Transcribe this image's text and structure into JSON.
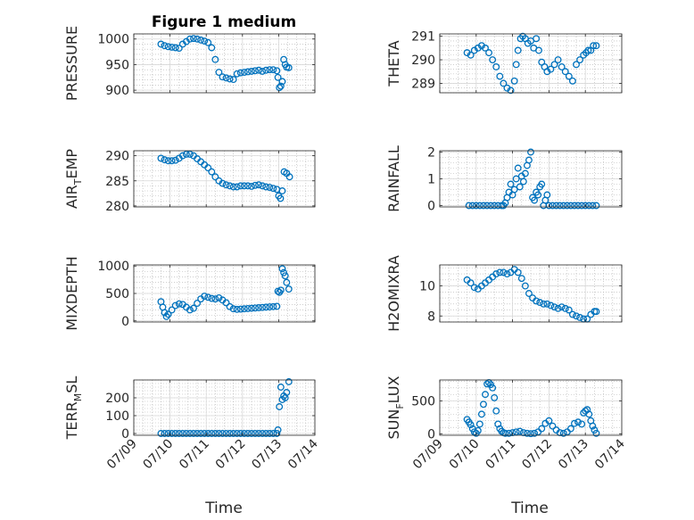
{
  "figure": {
    "title": "Figure 1 medium",
    "xlabel": "Time",
    "x_ticks": [
      "07/09",
      "07/10",
      "07/11",
      "07/12",
      "07/13",
      "07/14"
    ],
    "marker_color": "#0072BD",
    "grid_color": "#b0b0b0"
  },
  "chart_data": [
    {
      "type": "scatter",
      "ylabel_main": "PRESSURE",
      "ylabel_sub": "",
      "ylabel_tail": "",
      "ylim": [
        895,
        1010
      ],
      "yticks": [
        900,
        950,
        1000
      ],
      "xlim": [
        0,
        5
      ],
      "grid": true,
      "x": [
        0.75,
        0.85,
        0.95,
        1.05,
        1.15,
        1.25,
        1.35,
        1.45,
        1.55,
        1.65,
        1.75,
        1.85,
        1.95,
        2.05,
        2.15,
        2.25,
        2.35,
        2.45,
        2.55,
        2.65,
        2.75,
        2.85,
        2.95,
        3.05,
        3.15,
        3.25,
        3.35,
        3.45,
        3.55,
        3.65,
        3.75,
        3.85,
        3.95,
        3.98,
        4.02,
        4.06,
        4.1,
        4.14,
        4.18,
        4.22,
        4.28
      ],
      "y": [
        990,
        987,
        985,
        984,
        983,
        982,
        990,
        995,
        1000,
        1001,
        1000,
        998,
        996,
        993,
        983,
        960,
        935,
        926,
        924,
        922,
        921,
        932,
        934,
        935,
        936,
        937,
        938,
        939,
        937,
        939,
        940,
        940,
        938,
        925,
        905,
        908,
        917,
        960,
        950,
        945,
        944
      ]
    },
    {
      "type": "scatter",
      "ylabel_main": "THETA",
      "ylabel_sub": "",
      "ylabel_tail": "",
      "ylim": [
        288.6,
        291.1
      ],
      "yticks": [
        289,
        290,
        291
      ],
      "xlim": [
        0,
        5
      ],
      "grid": true,
      "x": [
        0.75,
        0.85,
        0.95,
        1.05,
        1.15,
        1.25,
        1.35,
        1.45,
        1.55,
        1.65,
        1.75,
        1.85,
        1.95,
        2.05,
        2.1,
        2.15,
        2.22,
        2.28,
        2.35,
        2.42,
        2.5,
        2.58,
        2.65,
        2.72,
        2.8,
        2.88,
        2.95,
        3.05,
        3.15,
        3.25,
        3.35,
        3.45,
        3.55,
        3.65,
        3.75,
        3.85,
        3.95,
        4.02,
        4.08,
        4.15,
        4.22,
        4.3
      ],
      "y": [
        290.3,
        290.2,
        290.4,
        290.5,
        290.6,
        290.5,
        290.3,
        290.0,
        289.7,
        289.3,
        289.0,
        288.8,
        288.7,
        289.1,
        289.8,
        290.4,
        290.9,
        291.0,
        290.9,
        290.7,
        290.8,
        290.5,
        290.9,
        290.4,
        289.9,
        289.7,
        289.5,
        289.6,
        289.8,
        290.0,
        289.7,
        289.5,
        289.3,
        289.1,
        289.8,
        290.0,
        290.2,
        290.3,
        290.4,
        290.4,
        290.6,
        290.6
      ]
    },
    {
      "type": "scatter",
      "ylabel_main": "AIR",
      "ylabel_sub": "T",
      "ylabel_tail": "EMP",
      "ylim": [
        279.8,
        291
      ],
      "yticks": [
        280,
        285,
        290
      ],
      "xlim": [
        0,
        5
      ],
      "grid": true,
      "x": [
        0.75,
        0.85,
        0.95,
        1.05,
        1.15,
        1.25,
        1.35,
        1.45,
        1.55,
        1.65,
        1.75,
        1.85,
        1.95,
        2.05,
        2.15,
        2.25,
        2.35,
        2.45,
        2.55,
        2.65,
        2.75,
        2.85,
        2.95,
        3.05,
        3.15,
        3.25,
        3.35,
        3.45,
        3.55,
        3.65,
        3.75,
        3.85,
        3.95,
        4.0,
        4.05,
        4.1,
        4.15,
        4.22,
        4.3
      ],
      "y": [
        289.5,
        289.2,
        289.0,
        289.0,
        289.1,
        289.5,
        290.0,
        290.3,
        290.3,
        290.0,
        289.4,
        288.8,
        288.2,
        287.6,
        286.8,
        285.8,
        285.0,
        284.5,
        284.2,
        284.0,
        283.8,
        283.8,
        284.0,
        284.0,
        284.0,
        283.9,
        284.1,
        284.2,
        284.0,
        283.8,
        283.7,
        283.5,
        283.3,
        282.0,
        281.5,
        283.0,
        286.8,
        286.5,
        285.8
      ]
    },
    {
      "type": "scatter",
      "ylabel_main": "RAINFALL",
      "ylabel_sub": "",
      "ylabel_tail": "",
      "ylim": [
        -0.05,
        2.05
      ],
      "yticks": [
        0,
        1,
        2
      ],
      "xlim": [
        0,
        5
      ],
      "grid": true,
      "x": [
        0.8,
        0.9,
        1.0,
        1.1,
        1.2,
        1.3,
        1.4,
        1.5,
        1.6,
        1.7,
        1.75,
        1.8,
        1.85,
        1.9,
        1.95,
        2.0,
        2.05,
        2.1,
        2.15,
        2.2,
        2.25,
        2.3,
        2.35,
        2.4,
        2.45,
        2.5,
        2.55,
        2.6,
        2.65,
        2.7,
        2.75,
        2.8,
        2.85,
        2.9,
        2.95,
        3.0,
        3.1,
        3.2,
        3.3,
        3.4,
        3.5,
        3.6,
        3.7,
        3.8,
        3.9,
        4.0,
        4.1,
        4.2,
        4.3
      ],
      "y": [
        0,
        0,
        0,
        0,
        0,
        0,
        0,
        0,
        0,
        0,
        0,
        0.1,
        0.3,
        0.5,
        0.8,
        0.4,
        0.6,
        1.0,
        1.4,
        0.7,
        1.1,
        0.9,
        1.2,
        1.5,
        1.7,
        2.0,
        0.3,
        0.2,
        0.5,
        0.4,
        0.7,
        0.8,
        0,
        0.2,
        0.4,
        0,
        0,
        0,
        0,
        0,
        0,
        0,
        0,
        0,
        0,
        0,
        0,
        0,
        0
      ]
    },
    {
      "type": "scatter",
      "ylabel_main": "MIXDEPTH",
      "ylabel_sub": "",
      "ylabel_tail": "",
      "ylim": [
        -20,
        1020
      ],
      "yticks": [
        0,
        500,
        1000
      ],
      "xlim": [
        0,
        5
      ],
      "grid": true,
      "x": [
        0.75,
        0.8,
        0.85,
        0.9,
        0.95,
        1.05,
        1.15,
        1.25,
        1.35,
        1.45,
        1.55,
        1.65,
        1.75,
        1.85,
        1.95,
        2.05,
        2.15,
        2.25,
        2.35,
        2.45,
        2.55,
        2.65,
        2.75,
        2.85,
        2.95,
        3.05,
        3.15,
        3.25,
        3.35,
        3.45,
        3.55,
        3.65,
        3.75,
        3.85,
        3.95,
        3.98,
        4.02,
        4.06,
        4.1,
        4.14,
        4.18,
        4.22,
        4.28
      ],
      "y": [
        350,
        250,
        150,
        80,
        120,
        200,
        280,
        310,
        300,
        250,
        200,
        230,
        320,
        400,
        450,
        430,
        410,
        400,
        420,
        380,
        330,
        260,
        220,
        210,
        215,
        220,
        225,
        230,
        235,
        240,
        245,
        250,
        255,
        260,
        265,
        540,
        520,
        560,
        950,
        880,
        820,
        700,
        580
      ]
    },
    {
      "type": "scatter",
      "ylabel_main": "H2OMIXRA",
      "ylabel_sub": "",
      "ylabel_tail": "",
      "ylim": [
        7.6,
        11.4
      ],
      "yticks": [
        8,
        10
      ],
      "xlim": [
        0,
        5
      ],
      "grid": true,
      "x": [
        0.75,
        0.85,
        0.95,
        1.05,
        1.15,
        1.25,
        1.35,
        1.45,
        1.55,
        1.65,
        1.75,
        1.85,
        1.95,
        2.05,
        2.15,
        2.25,
        2.35,
        2.45,
        2.55,
        2.65,
        2.75,
        2.85,
        2.95,
        3.05,
        3.15,
        3.25,
        3.35,
        3.45,
        3.55,
        3.65,
        3.75,
        3.85,
        3.95,
        4.05,
        4.15,
        4.25,
        4.3
      ],
      "y": [
        10.4,
        10.2,
        9.9,
        9.8,
        10.0,
        10.2,
        10.4,
        10.6,
        10.8,
        10.9,
        10.9,
        10.8,
        10.9,
        11.1,
        10.9,
        10.5,
        10.0,
        9.5,
        9.2,
        9.0,
        8.9,
        8.8,
        8.8,
        8.7,
        8.6,
        8.5,
        8.6,
        8.5,
        8.4,
        8.1,
        8.0,
        7.9,
        7.8,
        7.8,
        8.1,
        8.3,
        8.3
      ]
    },
    {
      "type": "scatter",
      "ylabel_main": "TERR",
      "ylabel_sub": "M",
      "ylabel_tail": "SL",
      "ylim": [
        -10,
        300
      ],
      "yticks": [
        0,
        100,
        200
      ],
      "xlim": [
        0,
        5
      ],
      "grid": true,
      "x": [
        0.75,
        0.85,
        0.95,
        1.05,
        1.15,
        1.25,
        1.35,
        1.45,
        1.55,
        1.65,
        1.75,
        1.85,
        1.95,
        2.05,
        2.15,
        2.25,
        2.35,
        2.45,
        2.55,
        2.65,
        2.75,
        2.85,
        2.95,
        3.05,
        3.15,
        3.25,
        3.35,
        3.45,
        3.55,
        3.65,
        3.75,
        3.85,
        3.95,
        3.98,
        4.02,
        4.06,
        4.1,
        4.14,
        4.18,
        4.22,
        4.28
      ],
      "y": [
        0,
        0,
        0,
        0,
        0,
        0,
        0,
        0,
        0,
        0,
        0,
        0,
        0,
        0,
        0,
        0,
        0,
        0,
        0,
        0,
        0,
        0,
        0,
        0,
        0,
        0,
        0,
        0,
        0,
        0,
        0,
        0,
        0,
        20,
        150,
        260,
        190,
        210,
        200,
        230,
        290
      ]
    },
    {
      "type": "scatter",
      "ylabel_main": "SUN",
      "ylabel_sub": "F",
      "ylabel_tail": "LUX",
      "ylim": [
        -20,
        820
      ],
      "yticks": [
        0,
        500
      ],
      "xlim": [
        0,
        5
      ],
      "grid": true,
      "x": [
        0.75,
        0.8,
        0.85,
        0.9,
        0.95,
        1.0,
        1.05,
        1.1,
        1.15,
        1.2,
        1.25,
        1.3,
        1.35,
        1.4,
        1.45,
        1.5,
        1.55,
        1.6,
        1.65,
        1.7,
        1.75,
        1.8,
        1.9,
        2.0,
        2.1,
        2.2,
        2.3,
        2.4,
        2.5,
        2.6,
        2.7,
        2.8,
        2.9,
        3.0,
        3.1,
        3.2,
        3.3,
        3.4,
        3.5,
        3.6,
        3.7,
        3.8,
        3.9,
        3.95,
        4.0,
        4.05,
        4.1,
        4.15,
        4.2,
        4.25,
        4.3
      ],
      "y": [
        220,
        180,
        140,
        80,
        30,
        10,
        50,
        150,
        300,
        450,
        600,
        760,
        780,
        750,
        700,
        550,
        350,
        150,
        80,
        40,
        20,
        10,
        10,
        20,
        30,
        40,
        20,
        10,
        5,
        10,
        30,
        80,
        160,
        200,
        120,
        60,
        20,
        10,
        30,
        80,
        160,
        180,
        150,
        320,
        350,
        370,
        300,
        200,
        120,
        60,
        10
      ]
    }
  ]
}
